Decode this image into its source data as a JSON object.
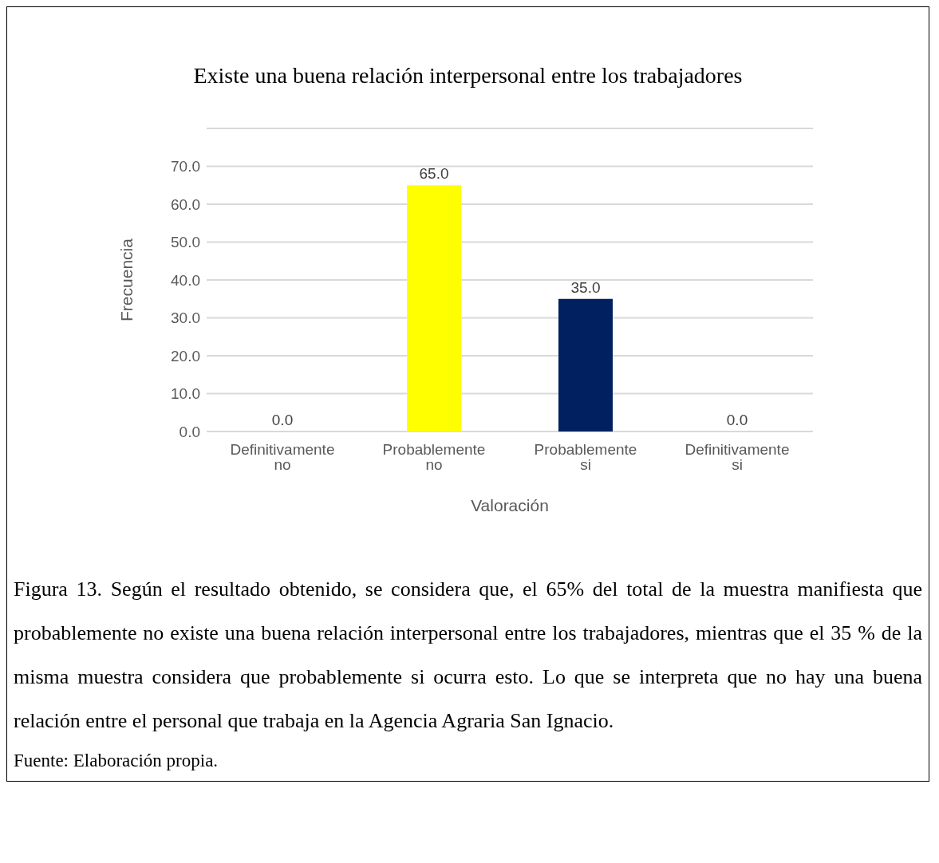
{
  "chart_data": {
    "type": "bar",
    "title": "Existe una buena relación interpersonal entre los trabajadores",
    "xlabel": "Valoración",
    "ylabel": "Frecuencia",
    "categories": [
      "Definitivamente no",
      "Probablemente no",
      "Probablemente si",
      "Definitivamente si"
    ],
    "values": [
      0,
      65,
      35,
      0
    ],
    "colors": [
      "#c00000",
      "#ffff00",
      "#002060",
      "#00863d"
    ],
    "value_labels": [
      "0.0",
      "65.0",
      "35.0",
      "0.0"
    ],
    "ylim": [
      0,
      80
    ],
    "yticks": [
      {
        "value": 0,
        "label": "0.0"
      },
      {
        "value": 10,
        "label": "10.0"
      },
      {
        "value": 20,
        "label": "20.0"
      },
      {
        "value": 30,
        "label": "30.0"
      },
      {
        "value": 40,
        "label": "40.0"
      },
      {
        "value": 50,
        "label": "50.0"
      },
      {
        "value": 60,
        "label": "60.0"
      },
      {
        "value": 70,
        "label": "70.0"
      },
      {
        "value": 80,
        "label": null
      }
    ],
    "grid": "y",
    "annotations": [
      "Figura 13. Según el resultado obtenido, se considera que, el 65% del total de la muestra manifiesta que probablemente no existe una buena relación interpersonal entre los trabajadores, mientras que el 35 % de la misma muestra considera que probablemente si ocurra esto. Lo que se interpreta que no hay una buena relación entre el personal que trabaja en la Agencia Agraria San Ignacio.",
      "Fuente: Elaboración propia."
    ]
  }
}
